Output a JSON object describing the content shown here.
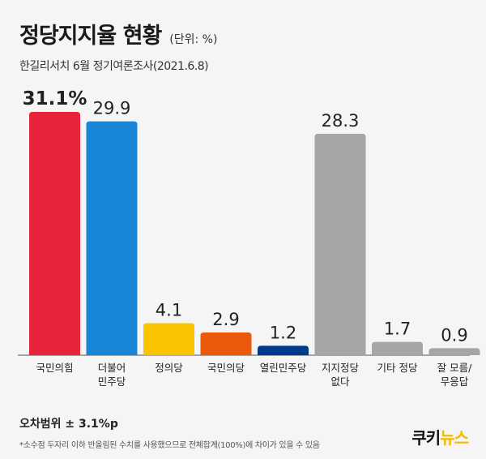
{
  "header": {
    "title": "정당지지율  현황",
    "unit": "(단위: %)",
    "subtitle": "한길리서치 6월 정기여론조사(2021.6.8)"
  },
  "footer": {
    "margin_of_error": "오차범위 ± 3.1%p",
    "note": "*소수점 두자리 이하 반올림된 수치를 사용했으므로 전체합계(100%)에 차이가 있을 수 있음",
    "brand_part1": "쿠키",
    "brand_part2": "뉴스"
  },
  "chart_data": {
    "type": "bar",
    "title": "정당지지율  현황",
    "categories": [
      "국민의힘",
      "더불어\n민주당",
      "정의당",
      "국민의당",
      "열린민주당",
      "지지정당\n없다",
      "기타 정당",
      "잘 모름/\n무응답"
    ],
    "values": [
      31.1,
      29.9,
      4.1,
      2.9,
      1.2,
      28.3,
      1.7,
      0.9
    ],
    "value_labels": [
      "31.1%",
      "29.9",
      "4.1",
      "2.9",
      "1.2",
      "28.3",
      "1.7",
      "0.9"
    ],
    "colors": [
      "#e8243c",
      "#1a86d8",
      "#fbc400",
      "#ea5a0c",
      "#003a8c",
      "#a5a5a5",
      "#a5a5a5",
      "#a5a5a5"
    ],
    "ylim": [
      0,
      31.1
    ],
    "grid": false,
    "legend": "none"
  }
}
